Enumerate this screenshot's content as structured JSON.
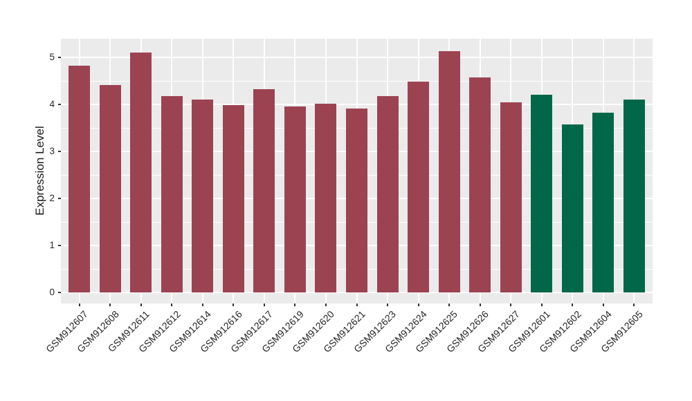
{
  "chart_data": {
    "type": "bar",
    "title": "",
    "xlabel": "",
    "ylabel": "Expression Level",
    "categories": [
      "GSM912607",
      "GSM912608",
      "GSM912611",
      "GSM912612",
      "GSM912614",
      "GSM912616",
      "GSM912617",
      "GSM912619",
      "GSM912620",
      "GSM912621",
      "GSM912623",
      "GSM912624",
      "GSM912625",
      "GSM912626",
      "GSM912627",
      "GSM912601",
      "GSM912602",
      "GSM912604",
      "GSM912605"
    ],
    "values": [
      4.82,
      4.41,
      5.1,
      4.17,
      4.1,
      3.99,
      4.32,
      3.95,
      4.01,
      3.91,
      4.17,
      4.49,
      5.13,
      4.57,
      4.04,
      4.2,
      3.57,
      3.83,
      4.1
    ],
    "bar_groups": [
      "maroon",
      "maroon",
      "maroon",
      "maroon",
      "maroon",
      "maroon",
      "maroon",
      "maroon",
      "maroon",
      "maroon",
      "maroon",
      "maroon",
      "maroon",
      "maroon",
      "maroon",
      "green",
      "green",
      "green",
      "green"
    ],
    "palette": {
      "maroon": "#9C4352",
      "green": "#006848"
    },
    "yticks": [
      0,
      1,
      2,
      3,
      4,
      5
    ],
    "minor_yticks": [
      0.5,
      1.5,
      2.5,
      3.5,
      4.5
    ],
    "ylim": [
      -0.24,
      5.39
    ],
    "x_label_rotation": -45,
    "legend": "none",
    "grid": "white major and minor horizontal lines, white vertical line per category, on gray panel",
    "panel_bg": "#EBEBEB",
    "grid_color": "#FFFFFF",
    "axis_text_color": "#262626",
    "tick_color": "#333333"
  }
}
